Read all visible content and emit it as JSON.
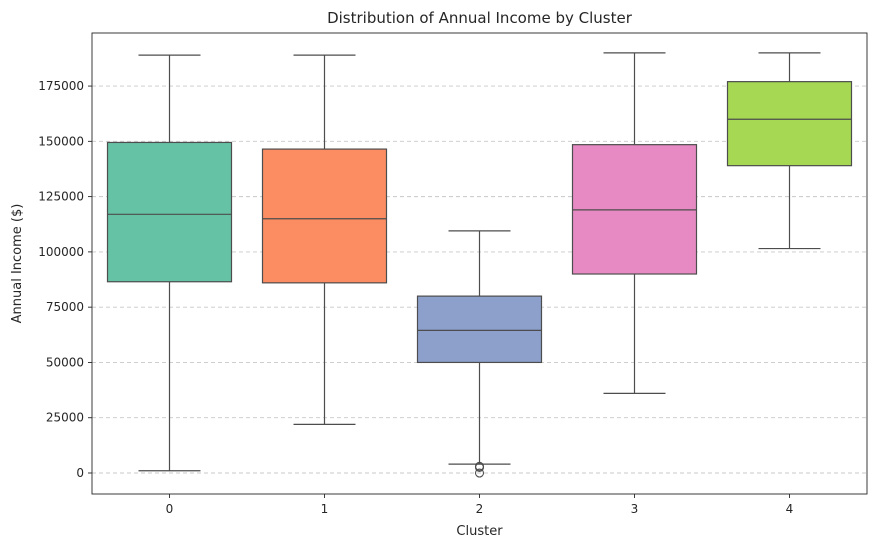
{
  "chart_data": {
    "type": "box",
    "title": "Distribution of Annual Income by Cluster",
    "xlabel": "Cluster",
    "ylabel": "Annual Income ($)",
    "ylim": [
      -9500,
      199000
    ],
    "yticks": [
      0,
      25000,
      50000,
      75000,
      100000,
      125000,
      150000,
      175000
    ],
    "ytick_labels": [
      "0",
      "25000",
      "50000",
      "75000",
      "100000",
      "125000",
      "150000",
      "175000"
    ],
    "grid": {
      "y": true,
      "x": false,
      "style": "dashed"
    },
    "categories": [
      "0",
      "1",
      "2",
      "3",
      "4"
    ],
    "series": [
      {
        "category": "0",
        "whisker_low": 1000,
        "q1": 86500,
        "median": 117000,
        "q3": 149500,
        "whisker_high": 189000,
        "outliers": [],
        "color": "#66c2a5"
      },
      {
        "category": "1",
        "whisker_low": 22000,
        "q1": 86000,
        "median": 115000,
        "q3": 146500,
        "whisker_high": 189000,
        "outliers": [],
        "color": "#fc8d62"
      },
      {
        "category": "2",
        "whisker_low": 4000,
        "q1": 50000,
        "median": 64500,
        "q3": 80000,
        "whisker_high": 109500,
        "outliers": [
          0,
          2500,
          3000
        ],
        "color": "#8da0cb"
      },
      {
        "category": "3",
        "whisker_low": 36000,
        "q1": 90000,
        "median": 119000,
        "q3": 148500,
        "whisker_high": 190000,
        "outliers": [],
        "color": "#e78ac3"
      },
      {
        "category": "4",
        "whisker_low": 101500,
        "q1": 139000,
        "median": 160000,
        "q3": 177000,
        "whisker_high": 190000,
        "outliers": [],
        "color": "#a6d854"
      }
    ]
  }
}
